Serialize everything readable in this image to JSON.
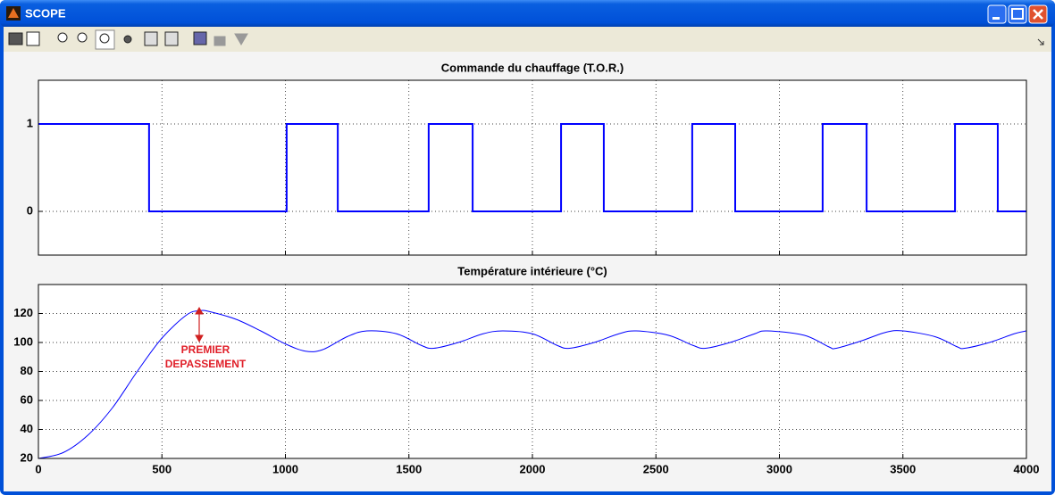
{
  "window": {
    "title": "SCOPE"
  },
  "chart_data": [
    {
      "type": "line",
      "title": "Commande du chauffage (T.O.R.)",
      "x": [
        0,
        448,
        448,
        1005,
        1005,
        1212,
        1212,
        1580,
        1580,
        1758,
        1758,
        2116,
        2116,
        2289,
        2289,
        2647,
        2647,
        2821,
        2821,
        3175,
        3175,
        3353,
        3353,
        3711,
        3711,
        3884,
        3884,
        4000
      ],
      "values": [
        1,
        1,
        0,
        0,
        1,
        1,
        0,
        0,
        1,
        1,
        0,
        0,
        1,
        1,
        0,
        0,
        1,
        1,
        0,
        0,
        1,
        1,
        0,
        0,
        1,
        1,
        0,
        0
      ],
      "color": "#0000ff",
      "xlim": [
        0,
        4000
      ],
      "ylim": [
        -0.5,
        1.5
      ],
      "xticks": [
        0,
        500,
        1000,
        1500,
        2000,
        2500,
        3000,
        3500,
        4000
      ],
      "yticks": [
        0,
        1
      ],
      "grid": true,
      "xticklabels": false
    },
    {
      "type": "line",
      "title": "Température intérieure (°C)",
      "x": [
        0,
        100,
        200,
        300,
        400,
        500,
        600,
        655,
        700,
        800,
        900,
        1000,
        1081,
        1150,
        1250,
        1330,
        1450,
        1550,
        1600,
        1700,
        1800,
        1880,
        2000,
        2100,
        2150,
        2250,
        2350,
        2420,
        2550,
        2650,
        2700,
        2800,
        2900,
        2950,
        3100,
        3200,
        3230,
        3330,
        3430,
        3500,
        3630,
        3720,
        3750,
        3850,
        3950,
        4000
      ],
      "values": [
        20,
        24,
        36,
        55,
        80,
        103,
        119,
        122,
        121,
        116,
        108,
        99,
        94,
        95,
        104,
        108,
        106,
        98,
        96,
        100,
        106,
        108,
        106,
        98,
        96,
        100,
        106,
        108,
        105,
        98,
        96,
        100,
        106,
        108,
        105,
        97,
        96,
        101,
        107,
        108,
        104,
        97,
        96,
        100,
        106,
        108
      ],
      "color": "#0000ff",
      "xlim": [
        0,
        4000
      ],
      "ylim": [
        20,
        140
      ],
      "xticks": [
        0,
        500,
        1000,
        1500,
        2000,
        2500,
        3000,
        3500,
        4000
      ],
      "yticks": [
        20,
        40,
        60,
        80,
        100,
        120
      ],
      "grid": true,
      "xticklabels": true,
      "annotation": [
        "PREMIER",
        "DEPASSEMENT"
      ]
    }
  ]
}
